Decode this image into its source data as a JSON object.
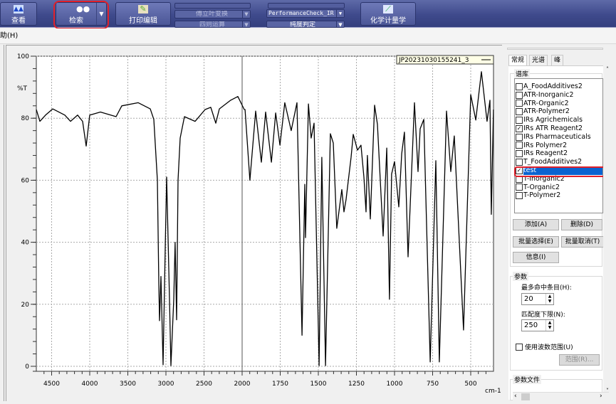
{
  "toolbar": {
    "view": {
      "label": "查看",
      "icon": "spectrum-icon"
    },
    "search": {
      "label": "检索",
      "icon": "binoculars-icon"
    },
    "print": {
      "label": "打印编辑",
      "icon": "print-edit-icon"
    },
    "fourier": "傅立叶变换",
    "arithmetic": "四则运算",
    "performance": "PerformanceCheck_IR",
    "purity": "纯度判定",
    "chemometrics": {
      "label": "化学计量学",
      "icon": "chemometrics-icon"
    }
  },
  "menubar": {
    "help": "助(H)"
  },
  "legend": {
    "label": "JP20231030155241_3"
  },
  "chart_data": {
    "type": "line",
    "ylabel": "%T",
    "xlabel": "cm-1",
    "xlim": [
      4700,
      350
    ],
    "ylim": [
      0,
      100
    ],
    "x_axis_break": 2000,
    "x_ticks": [
      4500,
      4000,
      3500,
      3000,
      2500,
      2000,
      1750,
      1500,
      1250,
      1000,
      750,
      500
    ],
    "y_ticks": [
      0,
      20,
      40,
      60,
      80,
      100
    ],
    "grid": true,
    "legend_position": "top-right",
    "series": [
      {
        "name": "JP20231030155241_3",
        "color": "#000000",
        "points": [
          [
            4701,
            82.8
          ],
          [
            4654,
            79
          ],
          [
            4579,
            81
          ],
          [
            4486,
            83
          ],
          [
            4327,
            81
          ],
          [
            4252,
            79
          ],
          [
            4159,
            81
          ],
          [
            4093,
            79
          ],
          [
            4047,
            71
          ],
          [
            4000,
            81
          ],
          [
            3860,
            82
          ],
          [
            3654,
            80.5
          ],
          [
            3579,
            84
          ],
          [
            3364,
            85
          ],
          [
            3206,
            83
          ],
          [
            3159,
            79.6
          ],
          [
            3112,
            60
          ],
          [
            3093,
            27
          ],
          [
            3084,
            14.7
          ],
          [
            3065,
            29
          ],
          [
            3037,
            0.5
          ],
          [
            3009,
            38
          ],
          [
            2991,
            61
          ],
          [
            2953,
            21.6
          ],
          [
            2935,
            0.2
          ],
          [
            2897,
            21.6
          ],
          [
            2879,
            40
          ],
          [
            2860,
            15
          ],
          [
            2841,
            60
          ],
          [
            2813,
            73.6
          ],
          [
            2757,
            80.5
          ],
          [
            2617,
            79
          ],
          [
            2486,
            82.8
          ],
          [
            2411,
            83.5
          ],
          [
            2346,
            78.4
          ],
          [
            2299,
            83
          ],
          [
            2150,
            85.8
          ],
          [
            2056,
            87
          ],
          [
            1986,
            82.8
          ],
          [
            1981,
            82.8
          ],
          [
            1949,
            60
          ],
          [
            1911,
            82.3
          ],
          [
            1874,
            65.8
          ],
          [
            1846,
            82
          ],
          [
            1808,
            65.8
          ],
          [
            1780,
            81.7
          ],
          [
            1752,
            71.3
          ],
          [
            1720,
            85
          ],
          [
            1678,
            76
          ],
          [
            1640,
            85
          ],
          [
            1607,
            10
          ],
          [
            1589,
            58.7
          ],
          [
            1584,
            41.5
          ],
          [
            1565,
            84.6
          ],
          [
            1547,
            73.6
          ],
          [
            1528,
            78.4
          ],
          [
            1495,
            0.2
          ],
          [
            1477,
            67.4
          ],
          [
            1453,
            0.2
          ],
          [
            1421,
            75
          ],
          [
            1402,
            72
          ],
          [
            1379,
            44.5
          ],
          [
            1346,
            57
          ],
          [
            1332,
            49.8
          ],
          [
            1318,
            53.7
          ],
          [
            1285,
            67.4
          ],
          [
            1271,
            74.8
          ],
          [
            1243,
            69.7
          ],
          [
            1220,
            71.3
          ],
          [
            1201,
            61
          ],
          [
            1187,
            49.8
          ],
          [
            1178,
            68
          ],
          [
            1159,
            47.5
          ],
          [
            1131,
            84.2
          ],
          [
            1112,
            78
          ],
          [
            1075,
            42
          ],
          [
            1051,
            70.4
          ],
          [
            1033,
            21.6
          ],
          [
            1019,
            62
          ],
          [
            1000,
            66
          ],
          [
            972,
            51.4
          ],
          [
            953,
            68.6
          ],
          [
            935,
            75.5
          ],
          [
            911,
            35.3
          ],
          [
            869,
            85
          ],
          [
            846,
            62.8
          ],
          [
            832,
            76.6
          ],
          [
            808,
            79.6
          ],
          [
            766,
            1.4
          ],
          [
            729,
            66.3
          ],
          [
            706,
            1.4
          ],
          [
            659,
            82.3
          ],
          [
            631,
            62.8
          ],
          [
            608,
            74.3
          ],
          [
            547,
            11.7
          ],
          [
            500,
            87.6
          ],
          [
            467,
            79.4
          ],
          [
            430,
            95
          ],
          [
            393,
            79
          ],
          [
            374,
            85.8
          ],
          [
            365,
            49
          ],
          [
            351,
            82.8
          ]
        ]
      }
    ]
  },
  "panel": {
    "tabs": [
      "常规",
      "光谱",
      "峰"
    ],
    "library_group": "谱库",
    "libraries": [
      {
        "name": "A_FoodAdditives2",
        "checked": false
      },
      {
        "name": "ATR-Inorganic2",
        "checked": false
      },
      {
        "name": "ATR-Organic2",
        "checked": false
      },
      {
        "name": "ATR-Polymer2",
        "checked": false
      },
      {
        "name": "IRs Agrichemicals",
        "checked": false
      },
      {
        "name": "IRs ATR Reagent2",
        "checked": true
      },
      {
        "name": "IRs Pharmaceuticals",
        "checked": false
      },
      {
        "name": "IRs Polymer2",
        "checked": false
      },
      {
        "name": "IRs Reagent2",
        "checked": false
      },
      {
        "name": "T_FoodAdditives2",
        "checked": false
      },
      {
        "name": "test",
        "checked": true,
        "selected": true
      },
      {
        "name": "T-Inorganic2",
        "checked": false
      },
      {
        "name": "T-Organic2",
        "checked": false
      },
      {
        "name": "T-Polymer2",
        "checked": false
      }
    ],
    "add": "添加(A)",
    "delete": "删除(D)",
    "batch_select": "批量选择(E)",
    "batch_cancel": "批量取消(T)",
    "info": "信息(I)",
    "params_group": "参数",
    "max_hits_label": "最多命中条目(H):",
    "max_hits": "20",
    "min_match_label": "匹配度下限(N):",
    "min_match": "250",
    "use_range_label": "使用波数范围(U)",
    "use_range": false,
    "range_button": "范围(R)...",
    "param_file_group": "参数文件"
  },
  "colors": {
    "toolbar": "#3f4a8c",
    "selection": "#0a63d0",
    "highlight": "#e0202a"
  }
}
